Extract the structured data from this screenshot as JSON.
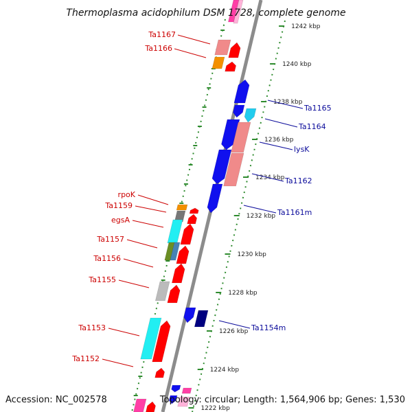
{
  "title": "Thermoplasma acidophilum DSM 1728, complete genome",
  "footer": {
    "accession": "Accession: NC_002578",
    "topology": "Topology: circular; Length: 1,564,906 bp; Genes: 1,530"
  },
  "colors": {
    "backbone": "#8c8c8c",
    "tick": "#2e8b2e",
    "leftLabel": "#cc0000",
    "rightLabel": "#0a0a9a"
  },
  "ticks": [
    {
      "label": "1242 kbp"
    },
    {
      "label": "1240 kbp"
    },
    {
      "label": "1238 kbp"
    },
    {
      "label": "1236 kbp"
    },
    {
      "label": "1234 kbp"
    },
    {
      "label": "1232 kbp"
    },
    {
      "label": "1230 kbp"
    },
    {
      "label": "1228 kbp"
    },
    {
      "label": "1226 kbp"
    },
    {
      "label": "1224 kbp"
    },
    {
      "label": "1222 kbp"
    }
  ],
  "left_labels": [
    "Ta1167",
    "Ta1166",
    "rpoK",
    "Ta1159",
    "egsA",
    "Ta1157",
    "Ta1156",
    "Ta1155",
    "Ta1153",
    "Ta1152"
  ],
  "right_labels": [
    "Ta1165",
    "Ta1164",
    "lysK",
    "Ta1162",
    "Ta1161m",
    "Ta1154m"
  ]
}
